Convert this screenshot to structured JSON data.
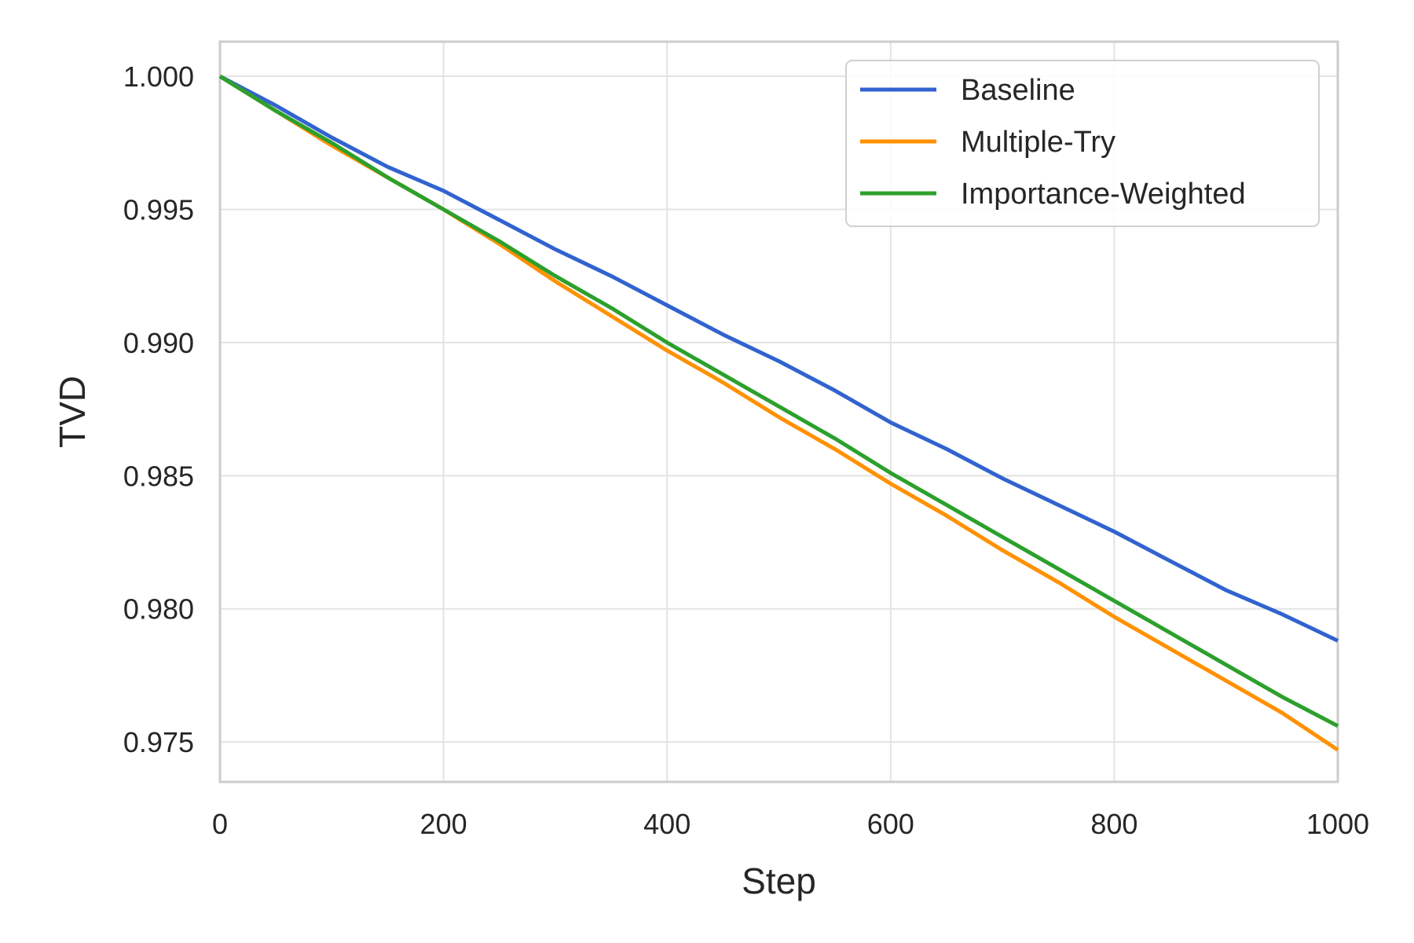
{
  "chart_data": {
    "type": "line",
    "title": "",
    "xlabel": "Step",
    "ylabel": "TVD",
    "xlim": [
      0,
      1000
    ],
    "ylim": [
      0.9735,
      1.0013
    ],
    "xticks": [
      0,
      200,
      400,
      600,
      800,
      1000
    ],
    "xtick_labels": [
      "0",
      "200",
      "400",
      "600",
      "800",
      "1000"
    ],
    "yticks": [
      0.975,
      0.98,
      0.985,
      0.99,
      0.995,
      1.0
    ],
    "ytick_labels": [
      "0.975",
      "0.980",
      "0.985",
      "0.990",
      "0.995",
      "1.000"
    ],
    "grid": true,
    "legend_position": "top-right",
    "x": [
      0,
      50,
      100,
      150,
      200,
      250,
      300,
      350,
      400,
      450,
      500,
      550,
      600,
      650,
      700,
      750,
      800,
      850,
      900,
      950,
      1000
    ],
    "series": [
      {
        "name": "Baseline",
        "color": "#3163cf",
        "values": [
          1.0,
          0.9989,
          0.9977,
          0.9966,
          0.9957,
          0.9946,
          0.9935,
          0.9925,
          0.9914,
          0.9903,
          0.9893,
          0.9882,
          0.987,
          0.986,
          0.9849,
          0.9839,
          0.9829,
          0.9818,
          0.9807,
          0.9798,
          0.9788
        ]
      },
      {
        "name": "Multiple-Try",
        "color": "#ff9100",
        "values": [
          1.0,
          0.9987,
          0.9974,
          0.9962,
          0.995,
          0.9937,
          0.9923,
          0.991,
          0.9897,
          0.9885,
          0.9872,
          0.986,
          0.9847,
          0.9835,
          0.9822,
          0.981,
          0.9797,
          0.9785,
          0.9773,
          0.9761,
          0.9747
        ]
      },
      {
        "name": "Importance-Weighted",
        "color": "#2ca02c",
        "values": [
          1.0,
          0.9987,
          0.9975,
          0.9962,
          0.995,
          0.9938,
          0.9925,
          0.9913,
          0.99,
          0.9888,
          0.9876,
          0.9864,
          0.9851,
          0.9839,
          0.9827,
          0.9815,
          0.9803,
          0.9791,
          0.9779,
          0.9767,
          0.9756
        ]
      }
    ]
  }
}
